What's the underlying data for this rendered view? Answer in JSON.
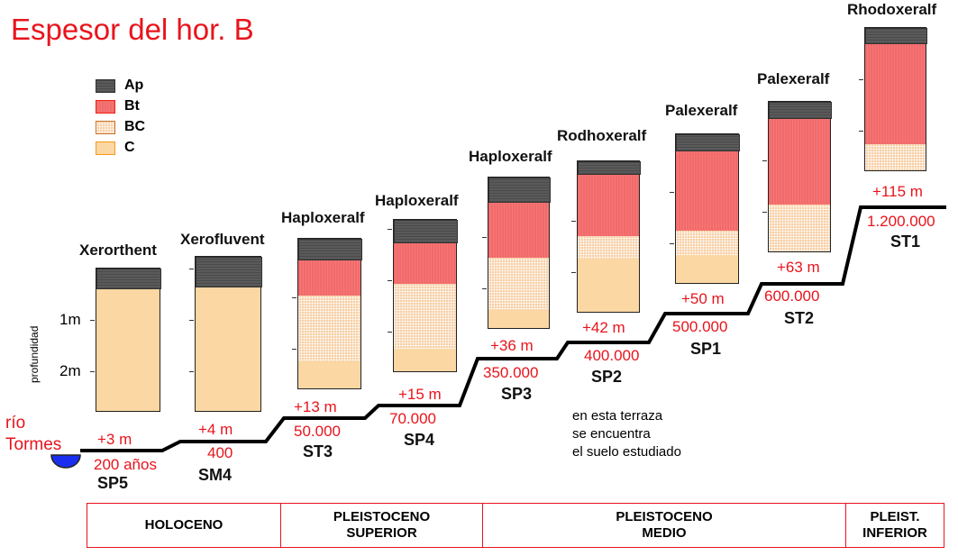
{
  "title": "Espesor del hor. B",
  "legend": [
    {
      "label": "Ap",
      "class": "ap"
    },
    {
      "label": "Bt",
      "class": "bt"
    },
    {
      "label": "BC",
      "class": "bc"
    },
    {
      "label": "C",
      "class": "c"
    }
  ],
  "axis": {
    "label": "profundidad",
    "ticks": [
      "1m",
      "2m"
    ]
  },
  "river": "río\nTormes",
  "profiles": [
    {
      "name": "Xerorthent",
      "height": "+3 m",
      "age": "200 años",
      "code": "SP5",
      "layers": [
        [
          "ap",
          21
        ],
        [
          "c",
          137
        ]
      ]
    },
    {
      "name": "Xerofluvent",
      "height": "+4 m",
      "age": "400",
      "code": "SM4",
      "layers": [
        [
          "ap",
          32
        ],
        [
          "c",
          139
        ]
      ]
    },
    {
      "name": "Haploxeralf",
      "height": "+13 m",
      "age": "50.000",
      "code": "ST3",
      "layers": [
        [
          "ap",
          22
        ],
        [
          "bt",
          40
        ],
        [
          "bc",
          74
        ],
        [
          "c",
          30
        ]
      ]
    },
    {
      "name": "Haploxeralf",
      "height": "+15 m",
      "age": "70.000",
      "code": "SP4",
      "layers": [
        [
          "ap",
          24
        ],
        [
          "bt",
          46
        ],
        [
          "bc",
          73
        ],
        [
          "c",
          25
        ]
      ]
    },
    {
      "name": "Haploxeralf",
      "height": "+36 m",
      "age": "350.000",
      "code": "SP3",
      "layers": [
        [
          "ap",
          26
        ],
        [
          "bt",
          62
        ],
        [
          "bc",
          59
        ],
        [
          "c",
          20
        ]
      ]
    },
    {
      "name": "Rodhoxeralf",
      "height": "+42 m",
      "age": "400.000",
      "code": "SP2",
      "layers": [
        [
          "ap",
          13
        ],
        [
          "bt",
          69
        ],
        [
          "bc",
          25
        ],
        [
          "c",
          60
        ]
      ]
    },
    {
      "name": "Palexeralf",
      "height": "+50 m",
      "age": "500.000",
      "code": "SP1",
      "layers": [
        [
          "ap",
          17
        ],
        [
          "bt",
          89
        ],
        [
          "bc",
          28
        ],
        [
          "c",
          31
        ]
      ]
    },
    {
      "name": "Palexeralf",
      "height": "+63 m",
      "age": "600.000",
      "code": "ST2",
      "layers": [
        [
          "ap",
          17
        ],
        [
          "bt",
          96
        ],
        [
          "bc",
          53
        ]
      ]
    },
    {
      "name": "Rhodoxeralf",
      "height": "+115 m",
      "age": "1.200.000",
      "code": "ST1",
      "layers": [
        [
          "ap",
          16
        ],
        [
          "bt",
          113
        ],
        [
          "bc",
          29
        ]
      ]
    }
  ],
  "note": "en esta terraza\nse encuentra\nel suelo estudiado",
  "periods": [
    "HOLOCENO",
    "PLEISTOCENO\nSUPERIOR",
    "PLEISTOCENO\nMEDIO",
    "PLEIST.\nINFERIOR"
  ]
}
